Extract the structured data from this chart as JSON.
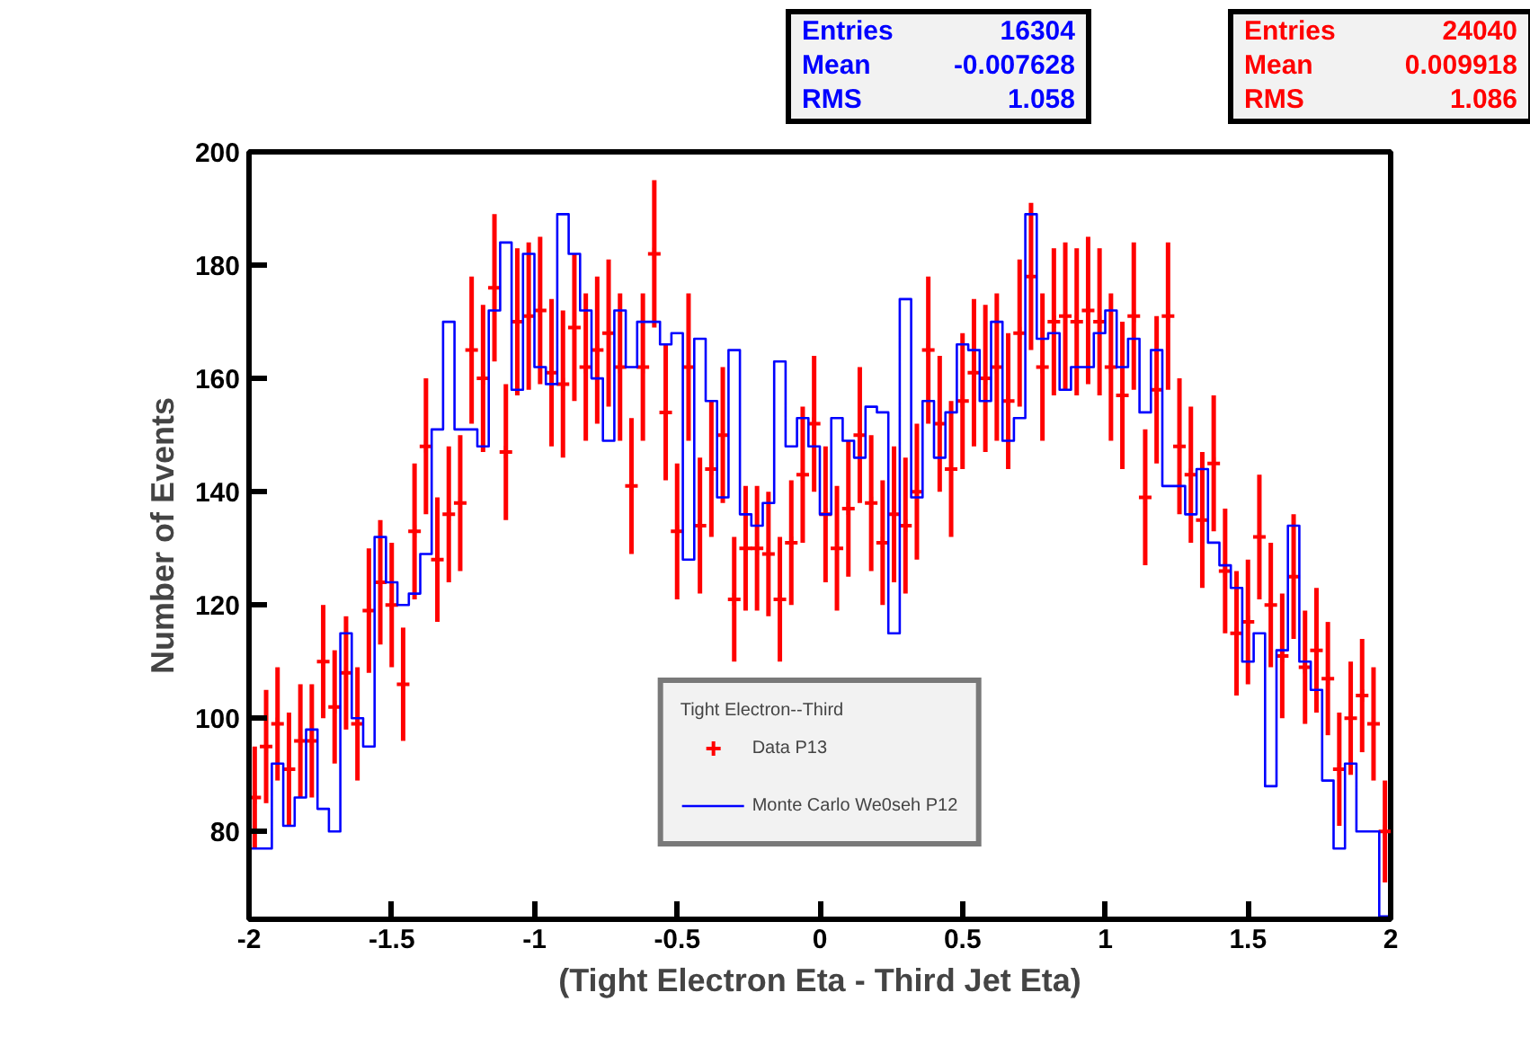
{
  "chart_data": {
    "type": "step",
    "xlabel": "(Tight Electron Eta - Third Jet Eta)",
    "ylabel": "Number of Events",
    "legend_title": "Tight Electron--Third",
    "x": [
      -1.98,
      -1.94,
      -1.9,
      -1.86,
      -1.82,
      -1.78,
      -1.74,
      -1.7,
      -1.66,
      -1.62,
      -1.58,
      -1.54,
      -1.5,
      -1.46,
      -1.42,
      -1.38,
      -1.34,
      -1.3,
      -1.26,
      -1.22,
      -1.18,
      -1.14,
      -1.1,
      -1.06,
      -1.02,
      -0.98,
      -0.94,
      -0.9,
      -0.86,
      -0.82,
      -0.78,
      -0.74,
      -0.7,
      -0.66,
      -0.62,
      -0.58,
      -0.54,
      -0.5,
      -0.46,
      -0.42,
      -0.38,
      -0.34,
      -0.3,
      -0.26,
      -0.22,
      -0.18,
      -0.14,
      -0.1,
      -0.06,
      -0.02,
      0.02,
      0.06,
      0.1,
      0.14,
      0.18,
      0.22,
      0.26,
      0.3,
      0.34,
      0.38,
      0.42,
      0.46,
      0.5,
      0.54,
      0.58,
      0.62,
      0.66,
      0.7,
      0.74,
      0.78,
      0.82,
      0.86,
      0.9,
      0.94,
      0.98,
      1.02,
      1.06,
      1.1,
      1.14,
      1.18,
      1.22,
      1.26,
      1.3,
      1.34,
      1.38,
      1.42,
      1.46,
      1.5,
      1.54,
      1.58,
      1.62,
      1.66,
      1.7,
      1.74,
      1.78,
      1.82,
      1.86,
      1.9,
      1.94,
      1.98
    ],
    "series": [
      {
        "name": "Data P13",
        "type": "scatter",
        "marker": "cross",
        "color": "#ff0000",
        "values": [
          86,
          95,
          99,
          91,
          96,
          96,
          110,
          102,
          108,
          99,
          119,
          124,
          120,
          106,
          133,
          148,
          128,
          136,
          138,
          165,
          160,
          176,
          147,
          170,
          171,
          172,
          161,
          159,
          169,
          162,
          165,
          168,
          162,
          141,
          162,
          182,
          154,
          133,
          162,
          134,
          144,
          150,
          121,
          130,
          130,
          129,
          121,
          131,
          143,
          152,
          136,
          130,
          137,
          150,
          138,
          131,
          136,
          134,
          140,
          165,
          152,
          144,
          156,
          161,
          160,
          162,
          156,
          168,
          178,
          162,
          170,
          171,
          170,
          172,
          170,
          162,
          157,
          171,
          139,
          158,
          171,
          148,
          143,
          135,
          145,
          126,
          115,
          117,
          132,
          120,
          111,
          125,
          109,
          112,
          107,
          91,
          100,
          104,
          99,
          80
        ],
        "errors": [
          9,
          10,
          10,
          10,
          10,
          10,
          10,
          10,
          10,
          10,
          11,
          11,
          11,
          10,
          12,
          12,
          11,
          12,
          12,
          13,
          13,
          13,
          12,
          13,
          13,
          13,
          13,
          13,
          13,
          13,
          13,
          13,
          13,
          12,
          13,
          13,
          12,
          12,
          13,
          12,
          12,
          12,
          11,
          11,
          11,
          11,
          11,
          11,
          12,
          12,
          12,
          11,
          12,
          12,
          12,
          11,
          12,
          12,
          12,
          13,
          12,
          12,
          12,
          13,
          13,
          13,
          12,
          13,
          13,
          13,
          13,
          13,
          13,
          13,
          13,
          13,
          13,
          13,
          12,
          13,
          13,
          12,
          12,
          12,
          12,
          11,
          11,
          11,
          11,
          11,
          11,
          11,
          10,
          11,
          10,
          10,
          10,
          10,
          10,
          9
        ]
      },
      {
        "name": "Monte Carlo We0seh P12",
        "color": "#0000ff",
        "values": [
          77,
          77,
          92,
          81,
          86,
          98,
          84,
          80,
          115,
          100,
          95,
          132,
          124,
          120,
          122,
          129,
          151,
          170,
          151,
          151,
          148,
          172,
          184,
          158,
          182,
          162,
          159,
          189,
          182,
          172,
          160,
          149,
          172,
          162,
          170,
          170,
          166,
          168,
          128,
          167,
          156,
          139,
          165,
          136,
          134,
          138,
          163,
          148,
          153,
          148,
          136,
          153,
          149,
          146,
          155,
          154,
          115,
          174,
          139,
          156,
          146,
          154,
          166,
          165,
          156,
          170,
          149,
          153,
          189,
          167,
          168,
          158,
          162,
          162,
          168,
          172,
          162,
          167,
          154,
          165,
          141,
          141,
          136,
          144,
          131,
          127,
          123,
          110,
          115,
          88,
          112,
          134,
          110,
          105,
          89,
          77,
          92,
          80,
          80,
          65
        ]
      }
    ],
    "xlim": [
      -2,
      2
    ],
    "xticks": [
      -2,
      -1.5,
      -1,
      -0.5,
      0,
      0.5,
      1,
      1.5,
      2
    ],
    "ylim": [
      64.5,
      200
    ],
    "yticks": [
      80,
      100,
      120,
      140,
      160,
      180,
      200
    ],
    "grid": false,
    "legend": "bottom",
    "annotations": [
      "Entries",
      "16304",
      "Mean",
      "-0.007628",
      "RMS",
      "1.058",
      "Entries",
      "24040",
      "Mean",
      "0.009918",
      "RMS",
      "1.086"
    ]
  }
}
